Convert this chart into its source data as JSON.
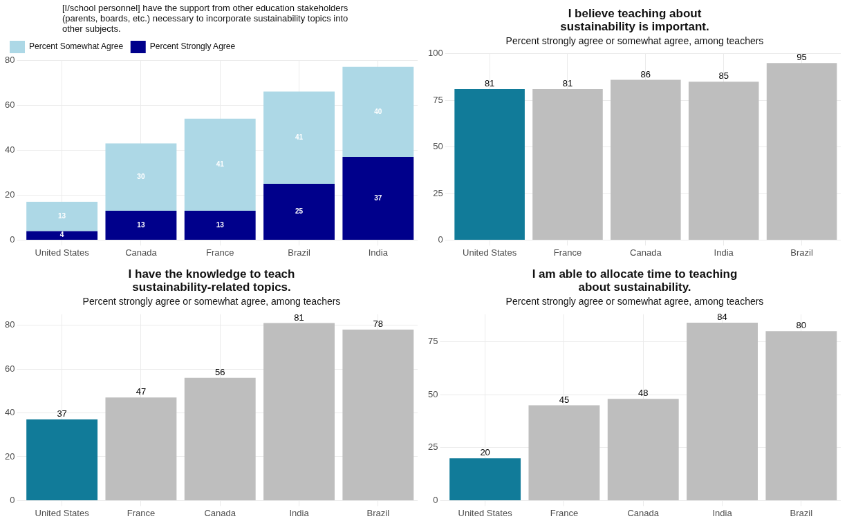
{
  "chart_data": [
    {
      "type": "bar",
      "title": "[I/school personnel] have the support from other education stakeholders (parents, boards, etc.) necessary to incorporate sustainability topics into other subjects.",
      "categories": [
        "United States",
        "Canada",
        "France",
        "Brazil",
        "India"
      ],
      "stacked": true,
      "legend": "top left",
      "grid": true,
      "data_labels": true,
      "ylim": [
        0,
        80
      ],
      "yticks": [
        0,
        20,
        40,
        60,
        80
      ],
      "series": [
        {
          "name": "Percent Strongly Agree",
          "color": "#00008b",
          "values": [
            4,
            13,
            13,
            25,
            37
          ]
        },
        {
          "name": "Percent Somewhat Agree",
          "color": "#add8e6",
          "values": [
            13,
            30,
            41,
            41,
            40
          ]
        }
      ]
    },
    {
      "type": "bar",
      "title": "I believe teaching about sustainability is important.",
      "subtitle": "Percent strongly agree or somewhat agree, among teachers",
      "categories": [
        "United States",
        "France",
        "Canada",
        "India",
        "Brazil"
      ],
      "values": [
        81,
        81,
        86,
        85,
        95
      ],
      "colors": [
        "#117b99",
        "#bebebe",
        "#bebebe",
        "#bebebe",
        "#bebebe"
      ],
      "grid": true,
      "data_labels": true,
      "ylim": [
        0,
        100
      ],
      "yticks": [
        0,
        25,
        50,
        75,
        100
      ]
    },
    {
      "type": "bar",
      "title": "I have the knowledge to teach sustainability-related topics.",
      "subtitle": "Percent strongly agree or somewhat agree, among teachers",
      "categories": [
        "United States",
        "France",
        "Canada",
        "India",
        "Brazil"
      ],
      "values": [
        37,
        47,
        56,
        81,
        78
      ],
      "colors": [
        "#117b99",
        "#bebebe",
        "#bebebe",
        "#bebebe",
        "#bebebe"
      ],
      "grid": true,
      "data_labels": true,
      "ylim": [
        0,
        85
      ],
      "yticks": [
        0,
        20,
        40,
        60,
        80
      ]
    },
    {
      "type": "bar",
      "title": "I am able to allocate time to teaching about sustainability.",
      "subtitle": "Percent strongly agree or somewhat agree, among teachers",
      "categories": [
        "United States",
        "France",
        "Canada",
        "India",
        "Brazil"
      ],
      "values": [
        20,
        45,
        48,
        84,
        80
      ],
      "colors": [
        "#117b99",
        "#bebebe",
        "#bebebe",
        "#bebebe",
        "#bebebe"
      ],
      "grid": true,
      "data_labels": true,
      "ylim": [
        0,
        88
      ],
      "yticks": [
        0,
        25,
        50,
        75
      ]
    }
  ]
}
